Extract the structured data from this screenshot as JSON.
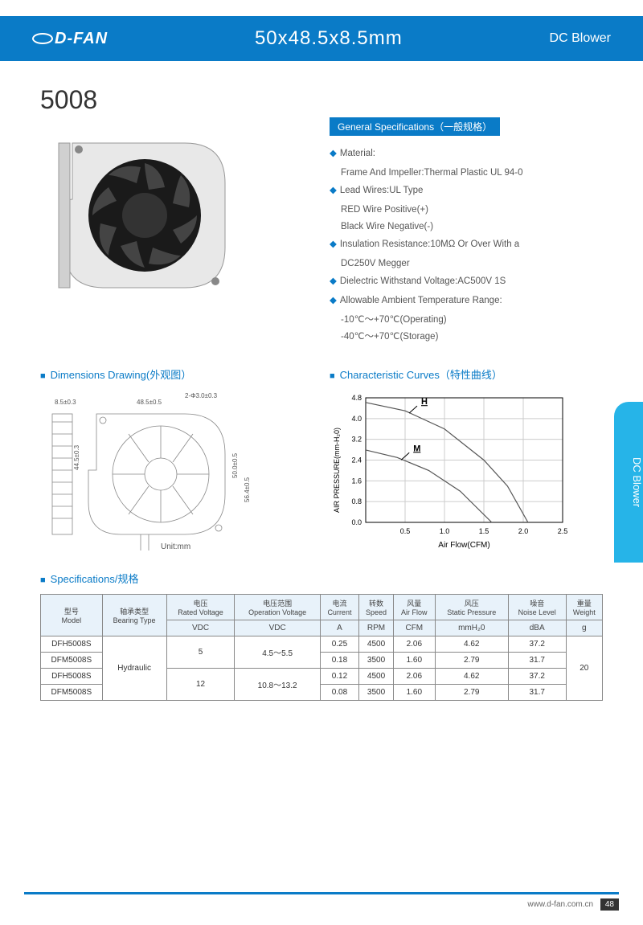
{
  "header": {
    "logo": "D-FAN",
    "dimensions": "50x48.5x8.5mm",
    "category": "DC Blower"
  },
  "product_number": "5008",
  "general_specs": {
    "title": "General Specifications（一般规格）",
    "items": [
      {
        "label": "Material:",
        "subs": [
          "Frame And Impeller:Thermal Plastic UL 94-0"
        ]
      },
      {
        "label": "Lead Wires:UL Type",
        "subs": [
          "RED Wire Positive(+)",
          "Black Wire Negative(-)"
        ]
      },
      {
        "label": "Insulation Resistance:10MΩ Or Over With a",
        "subs": [
          "DC250V Megger"
        ]
      },
      {
        "label": "Dielectric Withstand Voltage:AC500V 1S",
        "subs": []
      },
      {
        "label": "Allowable Ambient Temperature Range:",
        "subs": [
          "-10℃～+70℃(Operating)",
          "-40℃～+70℃(Storage)"
        ]
      }
    ]
  },
  "sections": {
    "drawing": "Dimensions Drawing(外观图）",
    "curves": "Characteristic Curves（特性曲线）",
    "specs": "Specifications/规格"
  },
  "drawing": {
    "labels": [
      "8.5±0.3",
      "48.5±0.5",
      "2-Φ3.0±0.3",
      "44.5±0.3",
      "50.0±0.5",
      "56.4±0.5",
      "Unit:mm"
    ],
    "color": "#777"
  },
  "chart": {
    "y_label": "AIR PRESSURE(mm-H₂0)",
    "x_label": "Air Flow(CFM)",
    "y_ticks": [
      "0.0",
      "0.8",
      "1.6",
      "2.4",
      "3.2",
      "4.0",
      "4.8"
    ],
    "x_ticks": [
      "0.5",
      "1.0",
      "1.5",
      "2.0",
      "2.5"
    ],
    "xlim": [
      0,
      2.5
    ],
    "ylim": [
      0,
      4.8
    ],
    "series": [
      {
        "name": "H",
        "color": "#555",
        "points": [
          [
            0,
            4.62
          ],
          [
            0.5,
            4.3
          ],
          [
            1.0,
            3.6
          ],
          [
            1.5,
            2.4
          ],
          [
            1.8,
            1.4
          ],
          [
            2.06,
            0
          ]
        ]
      },
      {
        "name": "M",
        "color": "#555",
        "points": [
          [
            0,
            2.79
          ],
          [
            0.4,
            2.5
          ],
          [
            0.8,
            2.0
          ],
          [
            1.2,
            1.2
          ],
          [
            1.4,
            0.6
          ],
          [
            1.6,
            0
          ]
        ]
      }
    ],
    "grid_color": "#ccc",
    "axis_color": "#000",
    "font_size": 9
  },
  "table": {
    "headers": [
      {
        "cn": "型号",
        "en": "Model",
        "unit": ""
      },
      {
        "cn": "轴承类型",
        "en": "Bearing Type",
        "unit": ""
      },
      {
        "cn": "电压",
        "en": "Rated Voltage",
        "unit": "VDC"
      },
      {
        "cn": "电压范围",
        "en": "Operation Voltage",
        "unit": "VDC"
      },
      {
        "cn": "电流",
        "en": "Current",
        "unit": "A"
      },
      {
        "cn": "转数",
        "en": "Speed",
        "unit": "RPM"
      },
      {
        "cn": "风量",
        "en": "Air Flow",
        "unit": "CFM"
      },
      {
        "cn": "风压",
        "en": "Static Pressure",
        "unit": "mmH₂0"
      },
      {
        "cn": "噪音",
        "en": "Noise Level",
        "unit": "dBA"
      },
      {
        "cn": "重量",
        "en": "Weight",
        "unit": "g"
      }
    ],
    "bearing": "Hydraulic",
    "weight": "20",
    "groups": [
      {
        "voltage": "5",
        "range": "4.5～5.5",
        "rows": [
          {
            "model": "DFH5008S",
            "current": "0.25",
            "speed": "4500",
            "airflow": "2.06",
            "pressure": "4.62",
            "noise": "37.2"
          },
          {
            "model": "DFM5008S",
            "current": "0.18",
            "speed": "3500",
            "airflow": "1.60",
            "pressure": "2.79",
            "noise": "31.7"
          }
        ]
      },
      {
        "voltage": "12",
        "range": "10.8～13.2",
        "rows": [
          {
            "model": "DFH5008S",
            "current": "0.12",
            "speed": "4500",
            "airflow": "2.06",
            "pressure": "4.62",
            "noise": "37.2"
          },
          {
            "model": "DFM5008S",
            "current": "0.08",
            "speed": "3500",
            "airflow": "1.60",
            "pressure": "2.79",
            "noise": "31.7"
          }
        ]
      }
    ],
    "header_bg": "#e8f2fa",
    "border_color": "#888"
  },
  "side_tab": "DC Blower",
  "footer": {
    "url": "www.d-fan.com.cn",
    "page": "48"
  }
}
